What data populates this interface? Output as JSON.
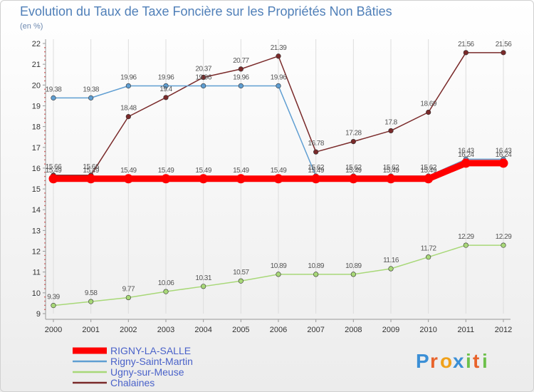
{
  "chart_data": {
    "type": "line",
    "title": "Evolution du Taux de Taxe Foncière sur les Propriétés Non Bâties",
    "subtitle": "(en %)",
    "x": [
      2000,
      2001,
      2002,
      2003,
      2004,
      2005,
      2006,
      2007,
      2008,
      2009,
      2010,
      2011,
      2012
    ],
    "ylim": [
      9,
      22
    ],
    "yticks": [
      9,
      10,
      11,
      12,
      13,
      14,
      15,
      16,
      17,
      18,
      19,
      20,
      21,
      22
    ],
    "grid": "vertical",
    "legend_position": "bottom-left",
    "series": [
      {
        "name": "RIGNY-LA-SALLE",
        "color": "#ff0000",
        "width": "thick",
        "values": [
          15.49,
          15.49,
          15.49,
          15.49,
          15.49,
          15.49,
          15.49,
          15.49,
          15.49,
          15.49,
          15.49,
          16.24,
          16.24
        ],
        "labels": [
          "15.49",
          "15.49",
          "15.49",
          "15.49",
          "15.49",
          "15.49",
          "15.49",
          "15.49",
          "15.49",
          "15.49",
          "15.49",
          "16.24",
          "16.24"
        ]
      },
      {
        "name": "Rigny-Saint-Martin",
        "color": "#5f9ed2",
        "width": "thin",
        "values": [
          19.38,
          19.38,
          19.96,
          19.96,
          19.96,
          19.96,
          19.96,
          15.62,
          15.62,
          15.62,
          15.62,
          16.43,
          16.43
        ],
        "labels": [
          "19.38",
          "19.38",
          "19.96",
          "19.96",
          "19.96",
          "19.96",
          "19.96",
          "15.62",
          "15.62",
          "15.62",
          "15.62",
          "16.43",
          "16.43"
        ]
      },
      {
        "name": "Ugny-sur-Meuse",
        "color": "#a8d878",
        "width": "thin",
        "values": [
          9.39,
          9.58,
          9.77,
          10.06,
          10.31,
          10.57,
          10.89,
          10.89,
          10.89,
          11.16,
          11.72,
          12.29,
          12.29
        ],
        "labels": [
          "9.39",
          "9.58",
          "9.77",
          "10.06",
          "10.31",
          "10.57",
          "10.89",
          "10.89",
          "10.89",
          "11.16",
          "11.72",
          "12.29",
          "12.29"
        ]
      },
      {
        "name": "Chalaines",
        "color": "#7a2a2a",
        "width": "thin",
        "values": [
          15.66,
          15.66,
          18.48,
          19.4,
          20.37,
          20.77,
          21.39,
          16.78,
          17.28,
          17.8,
          18.69,
          21.56,
          21.56
        ],
        "labels": [
          "15.66",
          "15.66",
          "18.48",
          "19.4",
          "20.37",
          "20.77",
          "21.39",
          "16.78",
          "17.28",
          "17.8",
          "18.69",
          "21.56",
          "21.56"
        ]
      }
    ]
  },
  "brand": {
    "letters": [
      "P",
      "r",
      "o",
      "x",
      "i",
      "t",
      "i"
    ],
    "colors": [
      "#3b8fd6",
      "#e8632b",
      "#f0a11a",
      "#3b8fd6",
      "#6cc04a",
      "#e8632b",
      "#6cc04a"
    ]
  }
}
